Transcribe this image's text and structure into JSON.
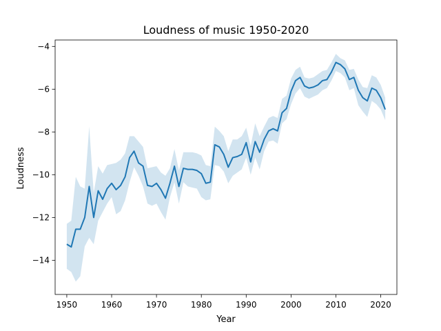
{
  "chart_data": {
    "type": "line",
    "title": "Loudness of music 1950-2020",
    "xlabel": "Year",
    "ylabel": "Loudness",
    "xlim": [
      1947.4,
      2023.6
    ],
    "ylim": [
      -15.6,
      -3.7
    ],
    "grid": false,
    "colors": {
      "line": "#1f77b4",
      "band": "#1f77b4",
      "band_opacity": 0.2
    },
    "x_ticks": [
      1950,
      1960,
      1970,
      1980,
      1990,
      2000,
      2010,
      2020
    ],
    "x_tick_labels": [
      "1950",
      "1960",
      "1970",
      "1980",
      "1990",
      "2000",
      "2010",
      "2020"
    ],
    "y_ticks": [
      -14,
      -12,
      -10,
      -8,
      -6,
      -4
    ],
    "y_tick_labels": [
      "−14",
      "−12",
      "−10",
      "−8",
      "−6",
      "−4"
    ],
    "series": [
      {
        "x": [
          1950,
          1951,
          1952,
          1953,
          1954,
          1955,
          1956,
          1957,
          1958,
          1959,
          1960,
          1961,
          1962,
          1963,
          1964,
          1965,
          1966,
          1967,
          1968,
          1969,
          1970,
          1971,
          1972,
          1973,
          1974,
          1975,
          1976,
          1977,
          1978,
          1979,
          1980,
          1981,
          1982,
          1983,
          1984,
          1985,
          1986,
          1987,
          1988,
          1989,
          1990,
          1991,
          1992,
          1993,
          1994,
          1995,
          1996,
          1997,
          1998,
          1999,
          2000,
          2001,
          2002,
          2003,
          2004,
          2005,
          2006,
          2007,
          2008,
          2009,
          2010,
          2011,
          2012,
          2013,
          2014,
          2015,
          2016,
          2017,
          2018,
          2019,
          2020,
          2021
        ],
        "y": [
          -13.25,
          -13.38,
          -12.55,
          -12.55,
          -12.0,
          -10.55,
          -12.0,
          -10.75,
          -11.15,
          -10.65,
          -10.4,
          -10.7,
          -10.5,
          -10.1,
          -9.2,
          -8.9,
          -9.45,
          -9.6,
          -10.5,
          -10.55,
          -10.4,
          -10.7,
          -11.1,
          -10.4,
          -9.6,
          -10.55,
          -9.7,
          -9.75,
          -9.75,
          -9.8,
          -9.95,
          -10.4,
          -10.35,
          -8.6,
          -8.7,
          -9.05,
          -9.65,
          -9.2,
          -9.15,
          -9.05,
          -8.5,
          -9.4,
          -8.45,
          -8.95,
          -8.35,
          -7.95,
          -7.85,
          -7.95,
          -7.1,
          -6.9,
          -6.1,
          -5.6,
          -5.45,
          -5.85,
          -5.95,
          -5.9,
          -5.8,
          -5.6,
          -5.55,
          -5.2,
          -4.75,
          -4.85,
          -5.05,
          -5.55,
          -5.45,
          -6.05,
          -6.4,
          -6.55,
          -5.95,
          -6.05,
          -6.4,
          -6.95
        ],
        "ci_lower": [
          -14.4,
          -14.55,
          -15.0,
          -14.75,
          -13.35,
          -12.95,
          -13.25,
          -12.15,
          -11.75,
          -11.35,
          -11.05,
          -11.85,
          -11.7,
          -11.2,
          -10.35,
          -9.65,
          -10.05,
          -10.55,
          -11.35,
          -11.45,
          -11.35,
          -11.75,
          -12.1,
          -11.05,
          -10.35,
          -11.35,
          -10.35,
          -10.55,
          -10.6,
          -10.65,
          -11.05,
          -11.2,
          -11.15,
          -9.55,
          -9.6,
          -9.85,
          -10.4,
          -10.05,
          -9.9,
          -9.75,
          -9.2,
          -10.0,
          -9.2,
          -9.75,
          -8.9,
          -8.45,
          -8.4,
          -8.55,
          -7.6,
          -7.4,
          -6.7,
          -6.2,
          -5.95,
          -6.35,
          -6.45,
          -6.35,
          -6.25,
          -6.05,
          -5.95,
          -5.6,
          -5.15,
          -5.25,
          -5.45,
          -6.05,
          -5.95,
          -6.75,
          -7.05,
          -7.3,
          -6.55,
          -6.7,
          -6.95,
          -7.45
        ],
        "ci_upper": [
          -12.3,
          -12.15,
          -10.1,
          -10.55,
          -10.65,
          -7.75,
          -10.85,
          -9.6,
          -9.95,
          -9.55,
          -9.5,
          -9.45,
          -9.3,
          -9.0,
          -8.2,
          -8.2,
          -8.45,
          -8.7,
          -9.7,
          -9.65,
          -9.6,
          -9.9,
          -10.05,
          -9.7,
          -8.8,
          -9.8,
          -8.95,
          -8.95,
          -8.95,
          -9.0,
          -9.1,
          -9.55,
          -9.6,
          -7.75,
          -7.95,
          -8.2,
          -8.9,
          -8.35,
          -8.35,
          -8.2,
          -7.8,
          -8.65,
          -7.6,
          -8.2,
          -7.75,
          -7.35,
          -7.25,
          -7.35,
          -6.45,
          -6.3,
          -5.5,
          -5.1,
          -4.95,
          -5.45,
          -5.5,
          -5.45,
          -5.3,
          -5.15,
          -5.1,
          -4.75,
          -4.35,
          -4.55,
          -4.65,
          -5.1,
          -5.05,
          -5.55,
          -5.9,
          -5.95,
          -5.35,
          -5.45,
          -5.8,
          -6.4
        ]
      }
    ]
  }
}
